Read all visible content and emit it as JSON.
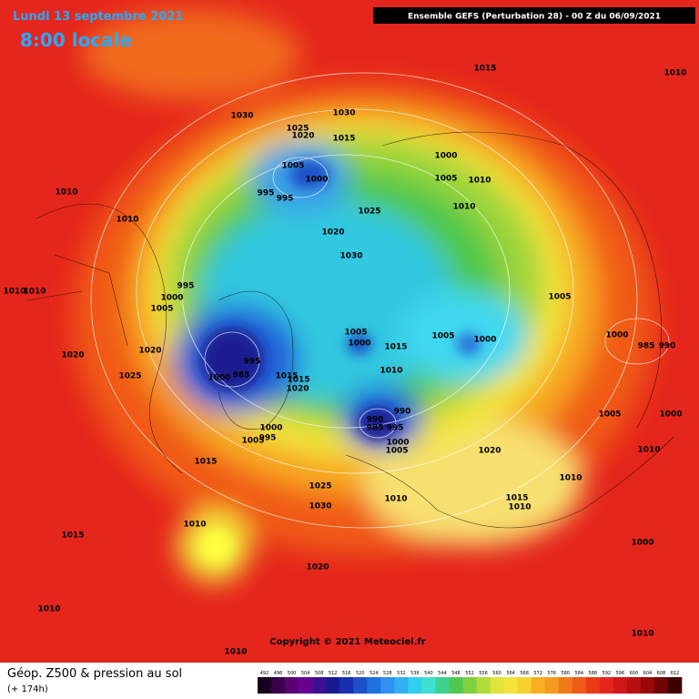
{
  "header": {
    "date": "Lundi 13 septembre 2021",
    "time": "8:00 locale",
    "model": "Ensemble GEFS  (Perturbation 28)  -  00 Z du 06/09/2021"
  },
  "map": {
    "isobar_labels": [
      "1015",
      "1010",
      "1030",
      "1030",
      "1025",
      "1020",
      "1015",
      "1005",
      "1000",
      "995",
      "995",
      "1000",
      "1005",
      "1010",
      "1010",
      "1025",
      "1010",
      "1010",
      "1020",
      "1030",
      "995",
      "1010",
      "1010",
      "1000",
      "1005",
      "1005",
      "1005",
      "1000",
      "1005",
      "1000",
      "1000",
      "985",
      "990",
      "1020",
      "1020",
      "995",
      "1015",
      "1010",
      "1025",
      "1000",
      "985",
      "1015",
      "1015",
      "1020",
      "990",
      "990",
      "985",
      "995",
      "1000",
      "1005",
      "1000",
      "995",
      "1005",
      "1005",
      "1000",
      "1020",
      "1010",
      "1015",
      "1010",
      "1025",
      "1030",
      "1010",
      "1015",
      "1010",
      "1010",
      "1015",
      "1000",
      "1020",
      "1010",
      "1010",
      "1010"
    ]
  },
  "footer": {
    "copyright": "Copyright © 2021 Meteociel.fr",
    "title": "Géop. Z500 & pression au sol",
    "lead": "(+ 174h)",
    "scale": [
      "492",
      "496",
      "500",
      "504",
      "508",
      "512",
      "516",
      "520",
      "524",
      "528",
      "532",
      "536",
      "540",
      "544",
      "548",
      "552",
      "556",
      "560",
      "564",
      "568",
      "572",
      "576",
      "580",
      "584",
      "588",
      "592",
      "596",
      "600",
      "604",
      "608",
      "612"
    ]
  }
}
